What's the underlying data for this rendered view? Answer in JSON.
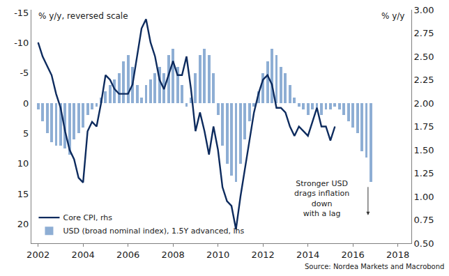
{
  "chart_data": {
    "type": "bar",
    "y_label": "% y/y, reversed scale",
    "y2_label": "% y/y",
    "source": "Source: Nordea Markets and Macrobond",
    "annotations": [
      {
        "lines": [
          "Stronger USD",
          "drags inflation",
          "down",
          "with a lag"
        ]
      }
    ],
    "xlim": [
      2001.7,
      2018.6
    ],
    "xticks": [
      2002,
      2004,
      2006,
      2008,
      2010,
      2012,
      2014,
      2016,
      2018
    ],
    "ylim": [
      23.2,
      -15.5
    ],
    "yticks": [
      -15,
      -10,
      -5,
      0,
      5,
      10,
      15,
      20
    ],
    "y2lim": [
      0.5,
      3.0
    ],
    "y2ticks": [
      {
        "value": 0.5,
        "label": "0.50"
      },
      {
        "value": 0.75,
        "label": "0.75"
      },
      {
        "value": 1.0,
        "label": "1.00"
      },
      {
        "value": 1.25,
        "label": "1.25"
      },
      {
        "value": 1.5,
        "label": "1.50"
      },
      {
        "value": 1.75,
        "label": "1.75"
      },
      {
        "value": 2.0,
        "label": "2.00"
      },
      {
        "value": 2.25,
        "label": "2.25"
      },
      {
        "value": 2.5,
        "label": "2.50"
      },
      {
        "value": 2.75,
        "label": "2.75"
      },
      {
        "value": 3.0,
        "label": "3.00"
      }
    ],
    "grid": false,
    "legend": "lower left",
    "series": [
      {
        "name": "Core CPI, rhs",
        "type": "line",
        "axis": "y2",
        "color": "#0d2b5e",
        "x": [
          2002.0,
          2002.2,
          2002.4,
          2002.6,
          2002.8,
          2003.0,
          2003.2,
          2003.4,
          2003.6,
          2003.8,
          2004.0,
          2004.2,
          2004.4,
          2004.6,
          2004.8,
          2005.0,
          2005.2,
          2005.4,
          2005.6,
          2005.8,
          2006.0,
          2006.2,
          2006.4,
          2006.6,
          2006.8,
          2007.0,
          2007.2,
          2007.4,
          2007.6,
          2007.8,
          2008.0,
          2008.2,
          2008.4,
          2008.6,
          2008.8,
          2009.0,
          2009.2,
          2009.4,
          2009.6,
          2009.8,
          2010.0,
          2010.2,
          2010.4,
          2010.6,
          2010.8,
          2011.0,
          2011.2,
          2011.4,
          2011.6,
          2011.8,
          2012.0,
          2012.2,
          2012.4,
          2012.6,
          2012.8,
          2013.0,
          2013.2,
          2013.4,
          2013.6,
          2013.8,
          2014.0,
          2014.2,
          2014.4,
          2014.6,
          2014.8,
          2015.0,
          2015.2
        ],
        "values": [
          2.65,
          2.5,
          2.4,
          2.3,
          2.1,
          1.95,
          1.7,
          1.5,
          1.4,
          1.2,
          1.15,
          1.7,
          1.8,
          1.75,
          2.0,
          2.3,
          2.25,
          2.15,
          2.1,
          2.1,
          2.1,
          2.2,
          2.5,
          2.8,
          2.9,
          2.65,
          2.5,
          2.25,
          2.15,
          2.3,
          2.45,
          2.3,
          2.3,
          2.5,
          2.15,
          1.7,
          1.9,
          1.7,
          1.45,
          1.75,
          1.5,
          1.1,
          0.95,
          0.9,
          0.65,
          1.0,
          1.3,
          1.6,
          1.9,
          2.1,
          2.25,
          2.3,
          2.2,
          1.95,
          1.95,
          1.9,
          1.75,
          1.65,
          1.75,
          1.7,
          1.65,
          1.8,
          1.95,
          1.75,
          1.75,
          1.6,
          1.75
        ]
      },
      {
        "name": "USD (broad nominal index), 1.5Y advanced, lhs",
        "type": "bar",
        "axis": "y",
        "color": "#8eaed4",
        "x": [
          2002.0,
          2002.2,
          2002.4,
          2002.6,
          2002.8,
          2003.0,
          2003.2,
          2003.4,
          2003.6,
          2003.8,
          2004.0,
          2004.2,
          2004.4,
          2004.6,
          2004.8,
          2005.0,
          2005.2,
          2005.4,
          2005.6,
          2005.8,
          2006.0,
          2006.2,
          2006.4,
          2006.6,
          2006.8,
          2007.0,
          2007.2,
          2007.4,
          2007.6,
          2007.8,
          2008.0,
          2008.2,
          2008.4,
          2008.6,
          2008.8,
          2009.0,
          2009.2,
          2009.4,
          2009.6,
          2009.8,
          2010.0,
          2010.2,
          2010.4,
          2010.6,
          2010.8,
          2011.0,
          2011.2,
          2011.4,
          2011.6,
          2011.8,
          2012.0,
          2012.2,
          2012.4,
          2012.6,
          2012.8,
          2013.0,
          2013.2,
          2013.4,
          2013.6,
          2013.8,
          2014.0,
          2014.2,
          2014.4,
          2014.6,
          2014.8,
          2015.0,
          2015.2,
          2015.4,
          2015.6,
          2015.8,
          2016.0,
          2016.2,
          2016.4,
          2016.6,
          2016.8
        ],
        "values": [
          1,
          3,
          5,
          6.5,
          7,
          7,
          7.5,
          8.5,
          6,
          5,
          4,
          2,
          1,
          0.5,
          -1,
          -2,
          -3,
          -4,
          -5,
          -7,
          -8,
          -6,
          -3,
          -1,
          -3,
          -4,
          -5,
          -6,
          -5,
          -8,
          -9,
          -6,
          -3,
          0.5,
          -1,
          -5,
          -8,
          -9,
          -8,
          -5,
          2,
          7,
          10,
          12,
          13,
          10,
          6,
          3,
          0.5,
          -2,
          -5,
          -7,
          -9,
          -8,
          -6,
          -5,
          -3,
          -1,
          0.5,
          1,
          2,
          1,
          1,
          2,
          1,
          1,
          0.5,
          1,
          2,
          3,
          4,
          5,
          8,
          9,
          13
        ]
      }
    ]
  }
}
